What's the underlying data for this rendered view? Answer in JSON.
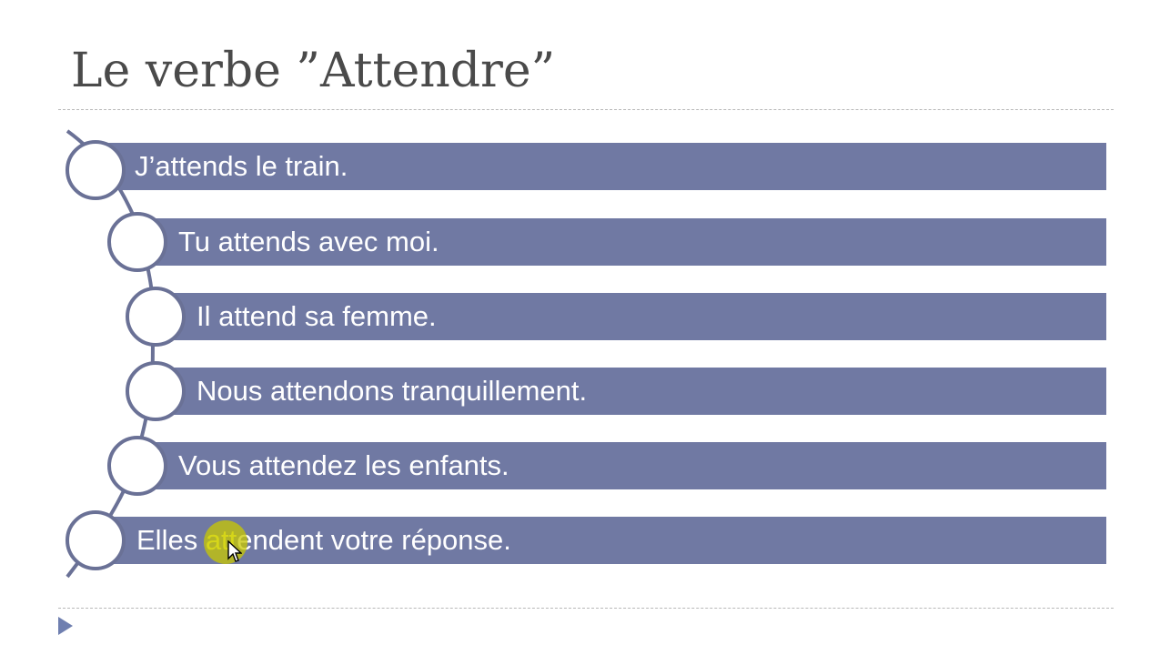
{
  "slide": {
    "title": "Le verbe ”Attendre”",
    "items": [
      {
        "label": "J’attends le train."
      },
      {
        "label": "Tu attends avec moi."
      },
      {
        "label": "Il attend sa femme."
      },
      {
        "label": "Nous attendons tranquillement."
      },
      {
        "label": "Vous attendez les enfants."
      },
      {
        "label_before": "Elles ",
        "label_highlight": "att",
        "label_after": "endent votre réponse."
      }
    ]
  },
  "colors": {
    "bar": "#7079a3",
    "node_border": "#6a7196",
    "title": "#4a4a4a",
    "cursor_highlight": "#c8c800"
  },
  "icons": {
    "nav": "play-triangle-icon",
    "cursor": "mouse-pointer-icon"
  }
}
